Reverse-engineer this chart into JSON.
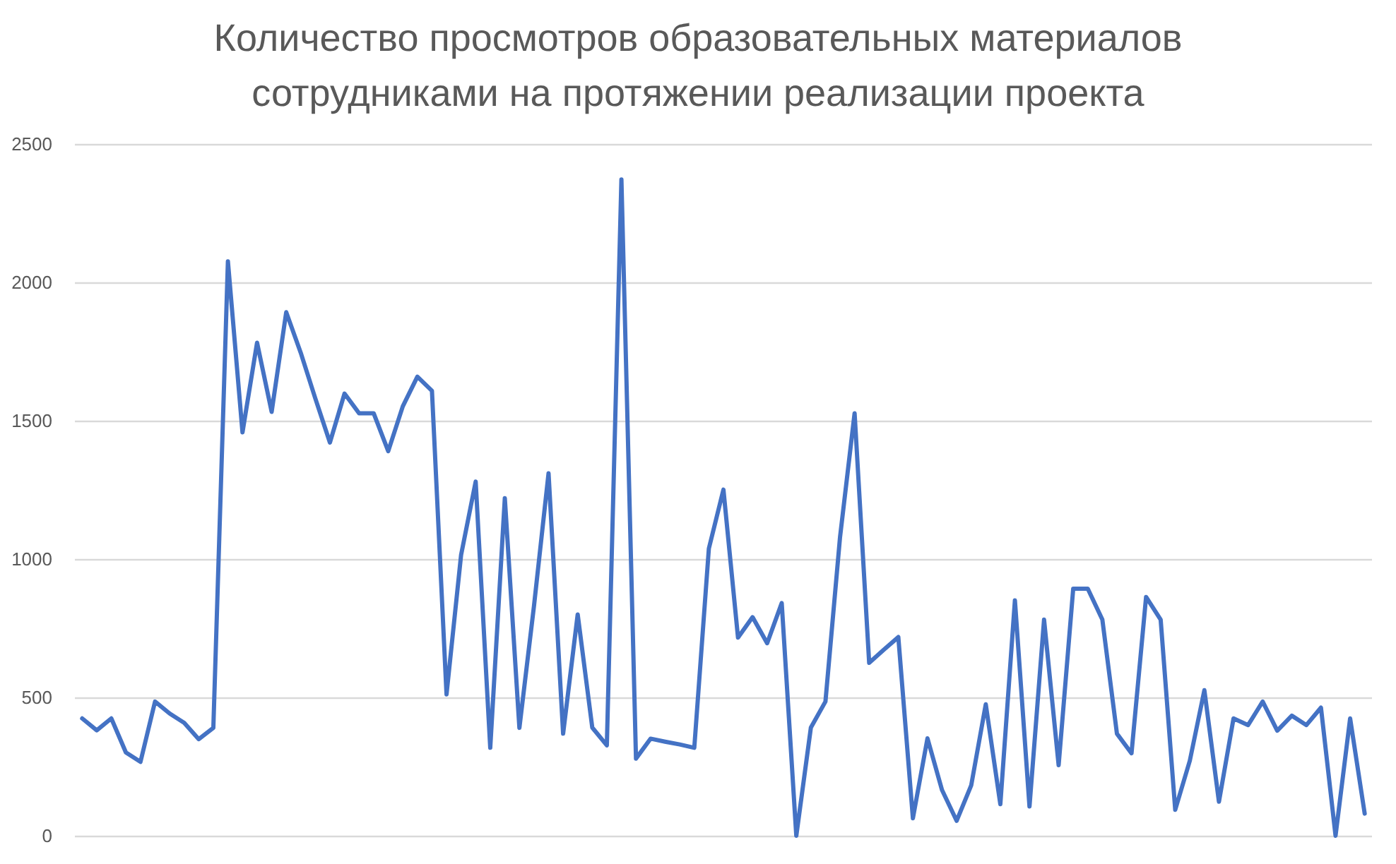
{
  "chart_data": {
    "type": "line",
    "title": "Количество просмотров образовательных материалов сотрудниками на протяжении реализации проекта",
    "categories": [
      null,
      null,
      null,
      null,
      null,
      null,
      null,
      null,
      null,
      null,
      null,
      null,
      null,
      null,
      null,
      null,
      null,
      null,
      null,
      null,
      null,
      null,
      null,
      null,
      null,
      null,
      null,
      null,
      null,
      null,
      null,
      null,
      null,
      null,
      null,
      null,
      null,
      null,
      null,
      null,
      null,
      null,
      null,
      null,
      null,
      null,
      null,
      null,
      null,
      null,
      null,
      null,
      null,
      null,
      null,
      null,
      null,
      null,
      null,
      null,
      null,
      null,
      null,
      null,
      null,
      null,
      null,
      null,
      null,
      null,
      null,
      null,
      null,
      null,
      null,
      null,
      null,
      null,
      null,
      null,
      null,
      null,
      null,
      null,
      null,
      null,
      null,
      null,
      null
    ],
    "series": [
      {
        "color": "#4472c4",
        "values": [
          424,
          381,
          424,
          301,
          267,
          485,
          442,
          408,
          349,
          390,
          2076,
          1458,
          1782,
          1532,
          1892,
          1745,
          1580,
          1421,
          1598,
          1527,
          1527,
          1390,
          1552,
          1659,
          1608,
          511,
          1015,
          1280,
          318,
          1220,
          390,
          830,
          1310,
          369,
          800,
          391,
          327,
          2372,
          279,
          351,
          340,
          330,
          318,
          1038,
          1251,
          716,
          790,
          696,
          841,
          0,
          391,
          485,
          1079,
          1527,
          625,
          672,
          718,
          63,
          352,
          165,
          54,
          182,
          475,
          114,
          851,
          106,
          781,
          255,
          893,
          893,
          781,
          369,
          298,
          863,
          781,
          94,
          271,
          526,
          123,
          424,
          400,
          485,
          380,
          434,
          400,
          463,
          0,
          424,
          80
        ]
      }
    ],
    "ylim": [
      0,
      2500
    ],
    "yticks": [
      0,
      500,
      1000,
      1500,
      2000,
      2500
    ],
    "grid": "y",
    "marker": "none",
    "line_style": "solid"
  }
}
